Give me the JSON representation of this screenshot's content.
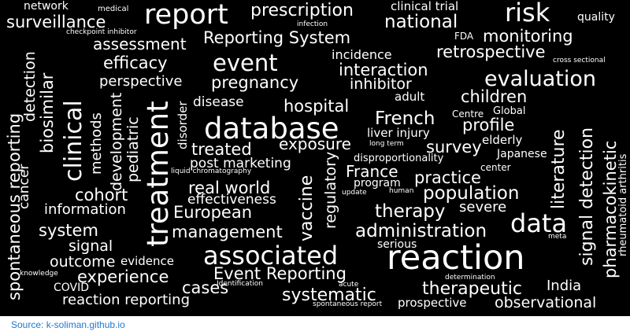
{
  "colors": {
    "background": "#000000",
    "text": "#ffffff",
    "source_link": "#1f77d0"
  },
  "words": {
    "network": "network",
    "medical": "medical",
    "report": "report",
    "prescription": "prescription",
    "clinical_trial": "clinical trial",
    "risk": "risk",
    "quality": "quality",
    "surveillance": "surveillance",
    "infection": "infection",
    "national": "national",
    "checkpoint_inhibitor": "checkpoint inhibitor",
    "assessment": "assessment",
    "reporting_system": "Reporting System",
    "fda": "FDA",
    "monitoring": "monitoring",
    "retrospective": "retrospective",
    "efficacy": "efficacy",
    "event": "event",
    "incidence": "incidence",
    "cross_sectional": "cross sectional",
    "interaction": "interaction",
    "evaluation": "evaluation",
    "perspective": "perspective",
    "pregnancy": "pregnancy",
    "inhibitor": "inhibitor",
    "adult": "adult",
    "children": "children",
    "disease": "disease",
    "hospital": "hospital",
    "centre": "Centre",
    "global": "Global",
    "french": "French",
    "profile": "profile",
    "database": "database",
    "liver_injury": "liver injury",
    "elderly": "elderly",
    "long_term": "long term",
    "exposure": "exposure",
    "survey": "survey",
    "treated": "treated",
    "japanese": "Japanese",
    "disproportionality": "disproportionality",
    "post_marketing": "post marketing",
    "center": "center",
    "france": "France",
    "liquid_chromatography": "liquid chromatography",
    "practice": "practice",
    "program": "program",
    "real_world": "real world",
    "population": "population",
    "update": "update",
    "human": "human",
    "effectiveness": "effectiveness",
    "severe": "severe",
    "european": "European",
    "therapy": "therapy",
    "information": "information",
    "data": "data",
    "system": "system",
    "management": "management",
    "administration": "administration",
    "meta": "meta",
    "signal": "signal",
    "serious": "serious",
    "associated": "associated",
    "reaction": "reaction",
    "outcome": "outcome",
    "evidence": "evidence",
    "knowledge": "knowledge",
    "experience": "experience",
    "event_reporting": "Event Reporting",
    "determination": "determination",
    "covid": "COVID",
    "cases": "cases",
    "identification": "Identification",
    "acute": "acute",
    "india": "India",
    "therapeutic": "therapeutic",
    "systematic": "systematic",
    "reaction_reporting": "reaction reporting",
    "spontaneous_report": "spontaneous report",
    "prospective": "prospective",
    "observational": "observational",
    "spontaneous_reporting": "spontaneous reporting",
    "cancer": "cancer",
    "detection": "detection",
    "biosimilar": "biosimilar",
    "clinical": "clinical",
    "methods": "methods",
    "development": "development",
    "pediatric": "pediatric",
    "treatment": "treatment",
    "disorder": "disorder",
    "vaccine": "vaccine",
    "regulatory": "regulatory",
    "literature": "literature",
    "signal_detection": "signal detection",
    "pharmacokinetic": "pharmacokinetic",
    "rheumatoid_arthritis": "rheumatoid arthritis",
    "cohort": "cohort"
  },
  "source": {
    "label": "Source: k-soliman.github.io"
  }
}
